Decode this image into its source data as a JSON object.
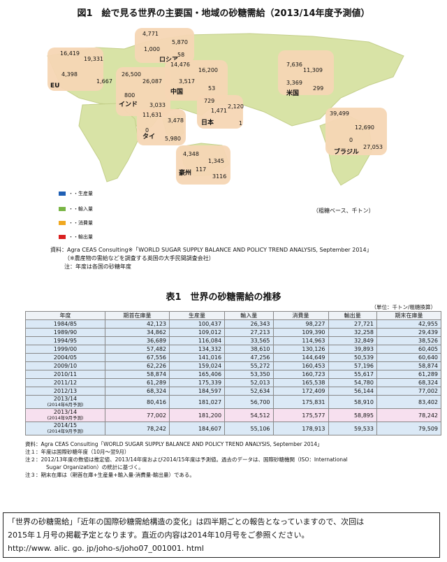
{
  "figure": {
    "title": "図1　絵で見る世界の主要国・地域の砂糖需給（2013/14年度予測値）",
    "regions": [
      {
        "name": "EU",
        "values": [
          "16,419",
          "4,398",
          "19,331",
          "1,667"
        ]
      },
      {
        "name": "ロシア",
        "values": [
          "4,771",
          "1,000",
          "5,870",
          "58"
        ]
      },
      {
        "name": "インド",
        "values": [
          "26,500",
          "800",
          "26,087",
          "3,033"
        ]
      },
      {
        "name": "中国",
        "values": [
          "14,476",
          "3,517",
          "16,200",
          "53"
        ]
      },
      {
        "name": "米国",
        "values": [
          "7,636",
          "3,369",
          "11,309",
          "299"
        ]
      },
      {
        "name": "タイ",
        "values": [
          "11,631",
          "0",
          "3,478",
          "5,980"
        ]
      },
      {
        "name": "日本",
        "values": [
          "729",
          "1,471",
          "2,120",
          "1"
        ]
      },
      {
        "name": "ブラジル",
        "values": [
          "39,499",
          "0",
          "12,690",
          "27,053"
        ]
      },
      {
        "name": "豪州",
        "values": [
          "4,348",
          "117",
          "1,345",
          "3116"
        ]
      }
    ],
    "legend": [
      {
        "label": "・・生産量",
        "color": "#1f5fb4"
      },
      {
        "label": "・・輸入量",
        "color": "#79b545"
      },
      {
        "label": "・・消費量",
        "color": "#f0a820"
      },
      {
        "label": "・・輸出量",
        "color": "#d92020"
      }
    ],
    "unit_note": "（粗糖ベース、千トン）",
    "source": "資料：Agra CEAS Consulting※「WORLD SUGAR SUPPLY BALANCE AND POLICY TREND ANALYSIS, September 2014」",
    "source_sub": "（※農産物の需給などを調査する英国の大手民間調査会社）",
    "source_note": "注：年度は各国の砂糖年度",
    "colors": {
      "map": "#d8e3a6",
      "map_edge": "#c4cf8a",
      "region": "#f6d6b4"
    }
  },
  "table": {
    "title": "表1　世界の砂糖需給の推移",
    "unit": "（単位：千トン/粗糖換算）",
    "headers": [
      "年度",
      "期首在庫量",
      "生産量",
      "輸入量",
      "消費量",
      "輸出量",
      "期末在庫量"
    ],
    "rows": [
      [
        "1984/85",
        "42,123",
        "100,437",
        "26,343",
        "98,227",
        "27,721",
        "42,955"
      ],
      [
        "1989/90",
        "34,862",
        "109,012",
        "27,213",
        "109,390",
        "32,258",
        "29,439"
      ],
      [
        "1994/95",
        "36,689",
        "116,084",
        "33,565",
        "114,963",
        "32,849",
        "38,526"
      ],
      [
        "1999/00",
        "57,482",
        "134,332",
        "38,610",
        "130,126",
        "39,893",
        "60,405"
      ],
      [
        "2004/05",
        "67,556",
        "141,016",
        "47,256",
        "144,649",
        "50,539",
        "60,640"
      ],
      [
        "2009/10",
        "62,226",
        "159,024",
        "55,272",
        "160,453",
        "57,196",
        "58,874"
      ],
      [
        "2010/11",
        "58,874",
        "165,406",
        "53,350",
        "160,723",
        "55,617",
        "61,289"
      ],
      [
        "2011/12",
        "61,289",
        "175,339",
        "52,013",
        "165,538",
        "54,780",
        "68,324"
      ],
      [
        "2012/13",
        "68,324",
        "184,597",
        "52,634",
        "172,409",
        "56,144",
        "77,002"
      ]
    ],
    "rows_special": [
      {
        "year1": "2013/14",
        "year2": "(2014年6月予測)",
        "vals": [
          "80,416",
          "181,027",
          "56,700",
          "175,831",
          "58,910",
          "83,402"
        ]
      },
      {
        "year1": "2013/14",
        "year2": "(2014年9月予測)",
        "vals": [
          "77,002",
          "181,200",
          "54,512",
          "175,577",
          "58,895",
          "78,242"
        ]
      },
      {
        "year1": "2014/15",
        "year2": "(2014年9月予測)",
        "vals": [
          "78,242",
          "184,607",
          "55,106",
          "178,913",
          "59,533",
          "79,509"
        ]
      }
    ],
    "notes": [
      "資料：Agra CEAS Consulting「WORLD SUGAR SUPPLY BALANCE AND POLICY TREND ANALYSIS, September 2014」",
      "注１：年度は国際砂糖年度（10月～翌9月）",
      "注２：2012/13年度の数値は推定値、2013/14年度および2014/15年度は予測値。過去のデータは、国際砂糖機関（ISO：International",
      "Sugar Organization）の統計に基づく。",
      "注３：期末在庫は（期首在庫+生産量+輸入量-消費量-輸出量）である。"
    ]
  },
  "notice": {
    "line1": "「世界の砂糖需給」「近年の国際砂糖需給構造の変化」は四半期ごとの報告となっていますので、次回は",
    "line2": "2015年１月号の掲載予定となります。直近の内容は2014年10月号をご参照ください。",
    "url": "http://www. alic. go. jp/joho-s/joho07_001001. html"
  }
}
